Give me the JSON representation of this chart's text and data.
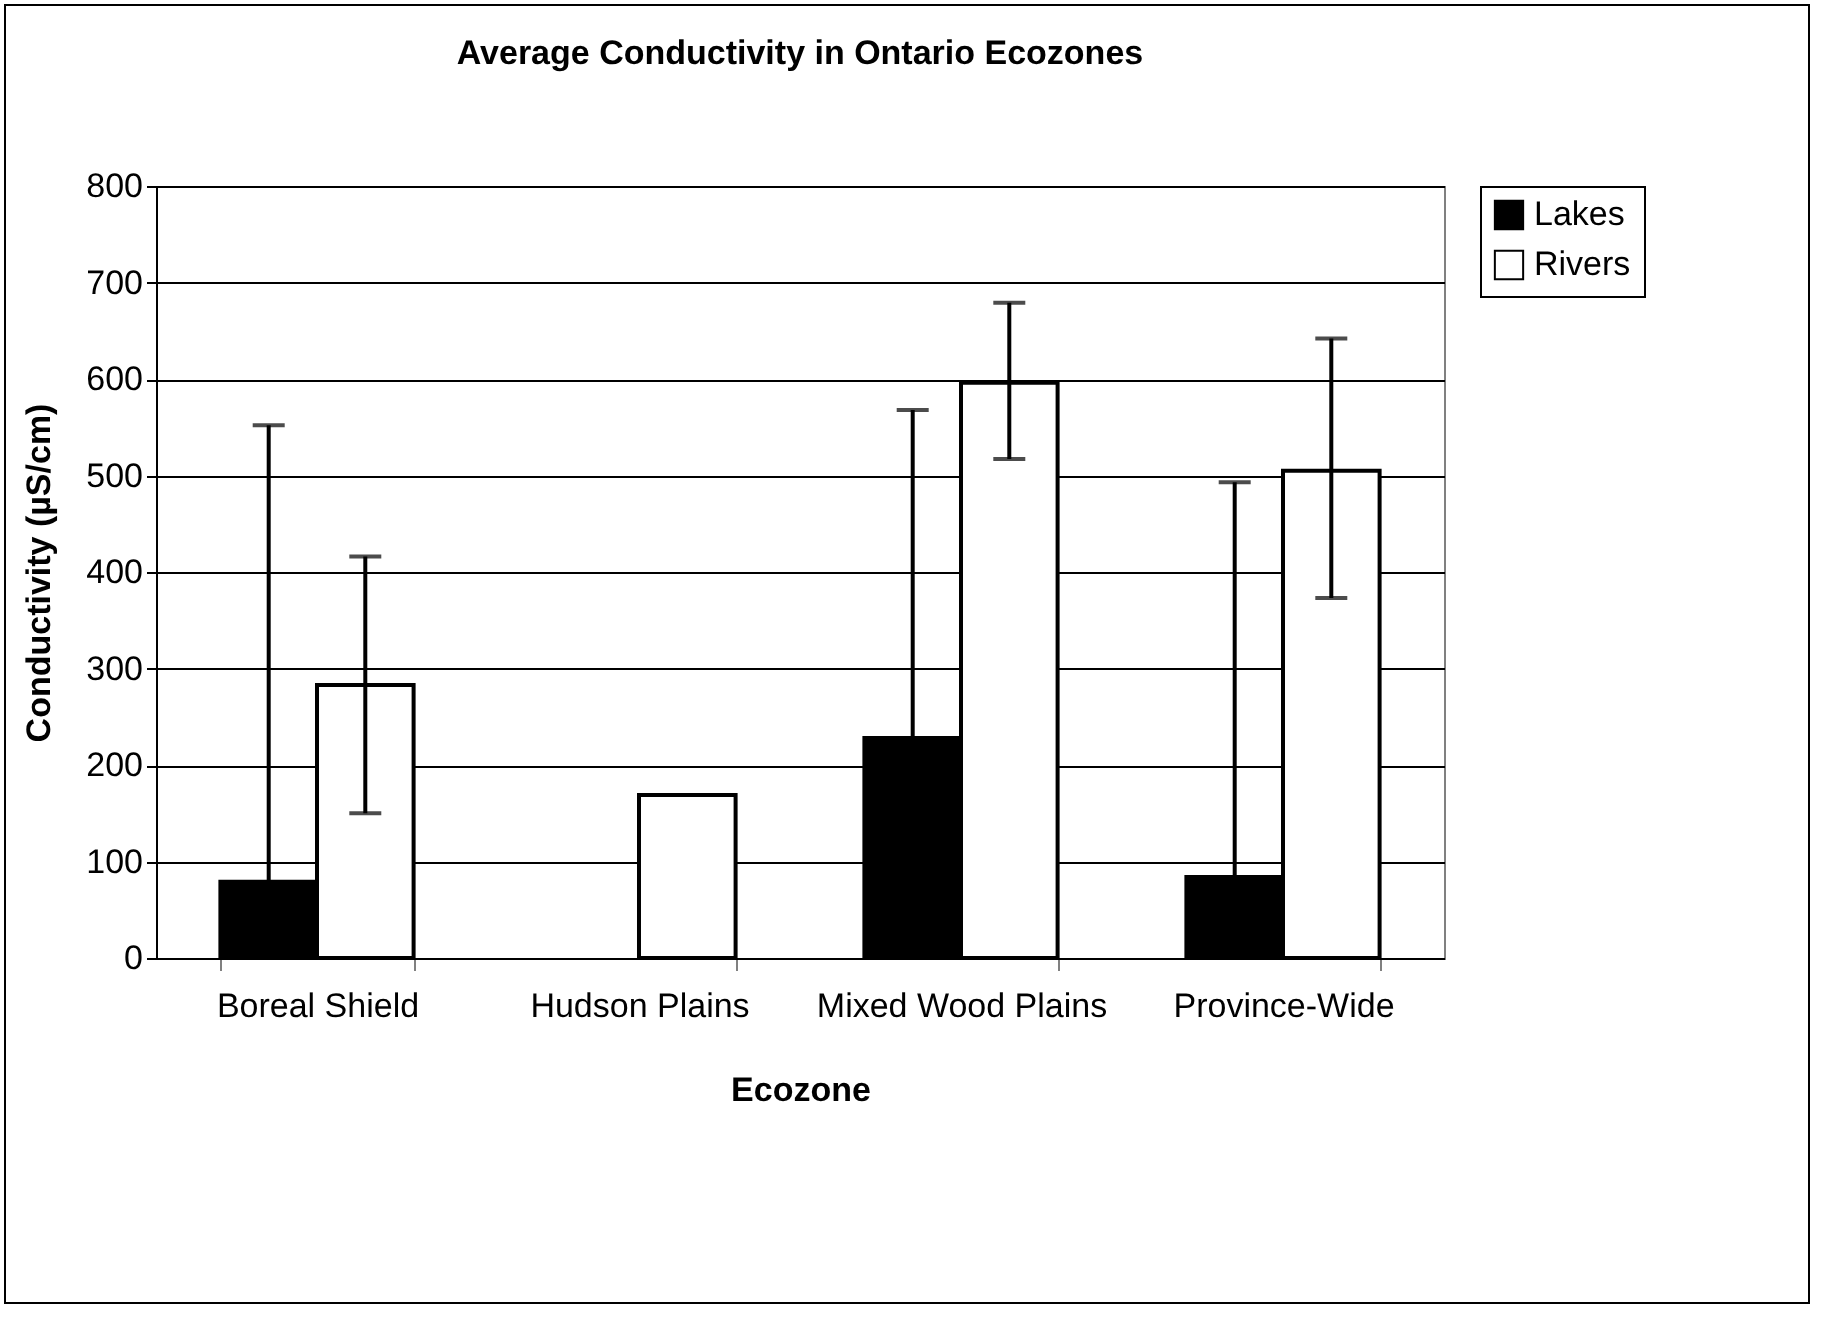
{
  "chart_data": {
    "type": "bar",
    "title": "Average Conductivity in Ontario Ecozones",
    "xlabel": "Ecozone",
    "ylabel": "Conductivity (µS/cm)",
    "categories": [
      "Boreal Shield",
      "Hudson Plains",
      "Mixed Wood Plains",
      "Province-Wide"
    ],
    "series": [
      {
        "name": "Lakes",
        "color": "#000000",
        "values": [
          79,
          null,
          228,
          84
        ],
        "errors": [
          [
            79,
            552
          ],
          null,
          [
            228,
            568
          ],
          [
            84,
            493
          ]
        ]
      },
      {
        "name": "Rivers",
        "color": "#ffffff",
        "values": [
          283,
          169,
          596,
          505
        ],
        "errors": [
          [
            150,
            416
          ],
          null,
          [
            517,
            679
          ],
          [
            373,
            642
          ]
        ]
      }
    ],
    "ylim": [
      0,
      800
    ],
    "yticks": [
      0,
      100,
      200,
      300,
      400,
      500,
      600,
      700,
      800
    ],
    "grid": "y",
    "legend": "right"
  }
}
